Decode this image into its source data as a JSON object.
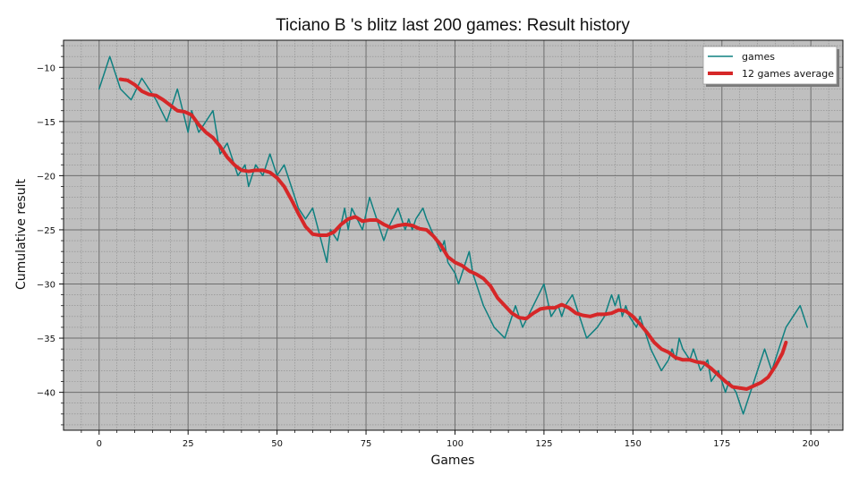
{
  "chart_data": {
    "type": "line",
    "title": "Ticiano B 's blitz last 200 games: Result history",
    "xlabel": "Games",
    "ylabel": "Cumulative result",
    "xlim": [
      -10,
      209
    ],
    "ylim": [
      -43.5,
      -7.5
    ],
    "xticks": [
      0,
      25,
      50,
      75,
      100,
      125,
      150,
      175,
      200
    ],
    "yticks": [
      -40,
      -35,
      -30,
      -25,
      -20,
      -15,
      -10
    ],
    "grid": true,
    "legend_position": "top-right",
    "background_color": "#bfbfbf",
    "series": [
      {
        "name": "games",
        "color": "#0f8080",
        "x": [
          0,
          3,
          6,
          9,
          12,
          14,
          16,
          19,
          22,
          25,
          26,
          28,
          32,
          34,
          36,
          39,
          41,
          42,
          44,
          46,
          48,
          50,
          52,
          54,
          56,
          58,
          60,
          64,
          65,
          67,
          69,
          70,
          71,
          74,
          76,
          78,
          80,
          81,
          84,
          86,
          87,
          88,
          89,
          91,
          92,
          96,
          97,
          98,
          100,
          101,
          104,
          105,
          108,
          111,
          114,
          117,
          119,
          122,
          125,
          127,
          129,
          130,
          131,
          133,
          135,
          137,
          140,
          142,
          144,
          145,
          146,
          147,
          148,
          149,
          151,
          152,
          155,
          158,
          160,
          161,
          162,
          163,
          164,
          166,
          167,
          169,
          171,
          172,
          174,
          176,
          177,
          179,
          181,
          183,
          185,
          187,
          189,
          191,
          193,
          195,
          197,
          199
        ],
        "y": [
          -12,
          -9,
          -12,
          -13,
          -11,
          -12,
          -13,
          -15,
          -12,
          -16,
          -14,
          -16,
          -14,
          -18,
          -17,
          -20,
          -19,
          -21,
          -19,
          -20,
          -18,
          -20,
          -19,
          -21,
          -23,
          -24,
          -23,
          -28,
          -25,
          -26,
          -23,
          -25,
          -23,
          -25,
          -22,
          -24,
          -26,
          -25,
          -23,
          -25,
          -24,
          -25,
          -24,
          -23,
          -24,
          -27,
          -26,
          -28,
          -29,
          -30,
          -27,
          -29,
          -32,
          -34,
          -35,
          -32,
          -34,
          -32,
          -30,
          -33,
          -32,
          -33,
          -32,
          -31,
          -33,
          -35,
          -34,
          -33,
          -31,
          -32,
          -31,
          -33,
          -32,
          -33,
          -34,
          -33,
          -36,
          -38,
          -37,
          -36,
          -37,
          -35,
          -36,
          -37,
          -36,
          -38,
          -37,
          -39,
          -38,
          -40,
          -39,
          -40,
          -42,
          -40,
          -38,
          -36,
          -38,
          -36,
          -34,
          -33,
          -32,
          -34
        ]
      },
      {
        "name": "12 games average",
        "color": "#d62728",
        "x": [
          6,
          8,
          10,
          12,
          14,
          16,
          18,
          20,
          22,
          24,
          26,
          28,
          30,
          32,
          34,
          36,
          38,
          40,
          42,
          44,
          46,
          48,
          50,
          52,
          54,
          56,
          58,
          60,
          62,
          64,
          66,
          68,
          70,
          72,
          74,
          76,
          78,
          80,
          82,
          84,
          86,
          88,
          90,
          92,
          94,
          96,
          98,
          100,
          102,
          104,
          106,
          108,
          110,
          112,
          114,
          116,
          118,
          120,
          122,
          124,
          126,
          128,
          130,
          132,
          134,
          136,
          138,
          140,
          142,
          144,
          146,
          148,
          150,
          152,
          154,
          156,
          158,
          160,
          162,
          164,
          166,
          168,
          170,
          172,
          174,
          176,
          178,
          180,
          182,
          184,
          186,
          188,
          190,
          192,
          193
        ],
        "y": [
          -11.1,
          -11.2,
          -11.6,
          -12.2,
          -12.5,
          -12.6,
          -13.0,
          -13.5,
          -14.0,
          -14.1,
          -14.4,
          -15.3,
          -16.0,
          -16.5,
          -17.3,
          -18.3,
          -19.0,
          -19.5,
          -19.6,
          -19.5,
          -19.5,
          -19.7,
          -20.2,
          -21.0,
          -22.2,
          -23.5,
          -24.7,
          -25.4,
          -25.5,
          -25.5,
          -25.2,
          -24.5,
          -24.0,
          -23.8,
          -24.2,
          -24.1,
          -24.1,
          -24.5,
          -24.8,
          -24.6,
          -24.5,
          -24.6,
          -24.9,
          -25.0,
          -25.6,
          -26.4,
          -27.5,
          -28.0,
          -28.3,
          -28.8,
          -29.1,
          -29.5,
          -30.2,
          -31.3,
          -32.0,
          -32.7,
          -33.1,
          -33.2,
          -32.7,
          -32.3,
          -32.2,
          -32.2,
          -31.9,
          -32.2,
          -32.7,
          -32.9,
          -33.0,
          -32.8,
          -32.8,
          -32.7,
          -32.4,
          -32.5,
          -33.0,
          -33.7,
          -34.5,
          -35.4,
          -36.0,
          -36.3,
          -36.8,
          -37.0,
          -37.0,
          -37.2,
          -37.3,
          -37.8,
          -38.4,
          -39.0,
          -39.5,
          -39.6,
          -39.7,
          -39.4,
          -39.1,
          -38.6,
          -37.6,
          -36.4,
          -35.4
        ]
      }
    ]
  }
}
